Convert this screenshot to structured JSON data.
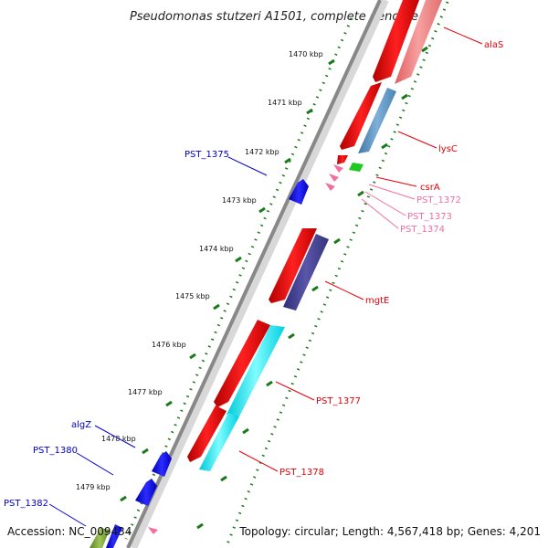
{
  "title": "Pseudomonas stutzeri A1501, complete genome",
  "footer": {
    "accession": "Accession: NC_009434",
    "topology": "Topology: circular; Length: 4,567,418 bp; Genes: 4,201"
  },
  "colors": {
    "red_label": "#e8000b",
    "blue_label": "#0000cc",
    "pink_label": "#f26ea0",
    "backbone": "#888888",
    "tick_green": "#1a7a1a"
  },
  "kbp_labels": [
    "1470 kbp",
    "1471 kbp",
    "1472 kbp",
    "1473 kbp",
    "1474 kbp",
    "1475 kbp",
    "1476 kbp",
    "1477 kbp",
    "1478 kbp",
    "1479 kbp"
  ],
  "gene_labels": {
    "alaS": "alaS",
    "lysC": "lysC",
    "csrA": "csrA",
    "pst1372": "PST_1372",
    "pst1373": "PST_1373",
    "pst1374": "PST_1374",
    "mgtE": "mgtE",
    "pst1377": "PST_1377",
    "pst1378": "PST_1378",
    "pst1375": "PST_1375",
    "algZ": "algZ",
    "pst1380": "PST_1380",
    "pst1382": "PST_1382"
  }
}
